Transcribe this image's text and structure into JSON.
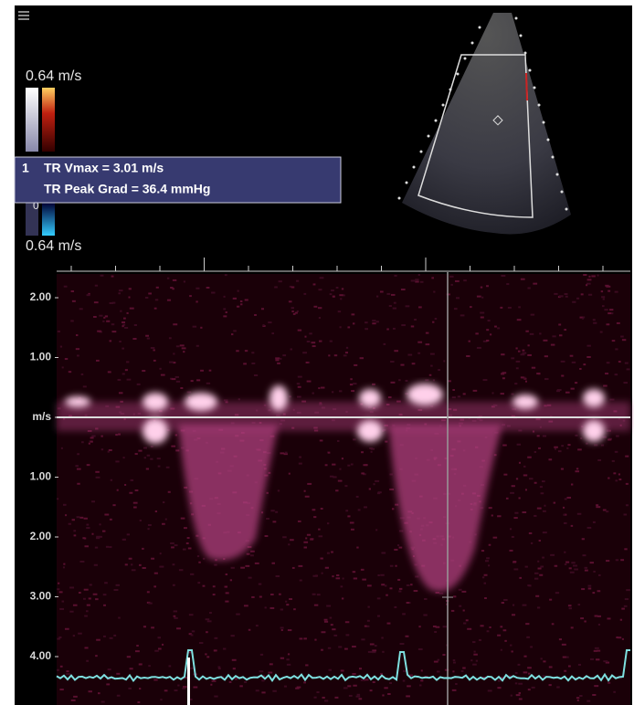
{
  "scale": {
    "top": "0.64 m/s",
    "middle": "0",
    "bottom": "0.64 m/s"
  },
  "measurement": {
    "index": "1",
    "lines": [
      "TR Vmax = 3.01 m/s",
      "TR Peak Grad = 36.4 mmHg"
    ]
  },
  "velocity_axis": {
    "labels": [
      "2.00",
      "1.00",
      "m/s",
      "1.00",
      "2.00",
      "3.00",
      "4.00"
    ]
  }
}
